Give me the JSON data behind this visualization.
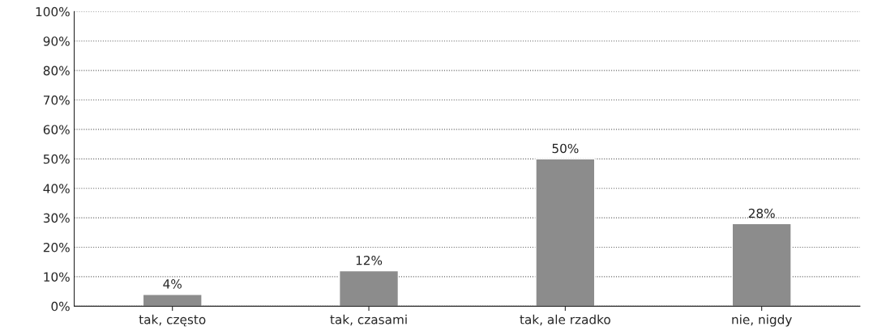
{
  "chart_data": {
    "type": "bar",
    "categories": [
      "tak, często",
      "tak, czasami",
      "tak, ale rzadko",
      "nie, nigdy"
    ],
    "values": [
      4,
      12,
      50,
      28
    ],
    "value_labels": [
      "4%",
      "12%",
      "50%",
      "28%"
    ],
    "color": "#8c8c8c",
    "ylim": [
      0,
      100
    ],
    "yticks": [
      {
        "value": 0,
        "label": "0%"
      },
      {
        "value": 10,
        "label": "10%"
      },
      {
        "value": 20,
        "label": "20%"
      },
      {
        "value": 30,
        "label": "30%"
      },
      {
        "value": 40,
        "label": "40%"
      },
      {
        "value": 50,
        "label": "50%"
      },
      {
        "value": 60,
        "label": "60%"
      },
      {
        "value": 70,
        "label": "70%"
      },
      {
        "value": 80,
        "label": "80%"
      },
      {
        "value": 90,
        "label": "90%"
      },
      {
        "value": 100,
        "label": "100%"
      }
    ],
    "grid": "y"
  }
}
